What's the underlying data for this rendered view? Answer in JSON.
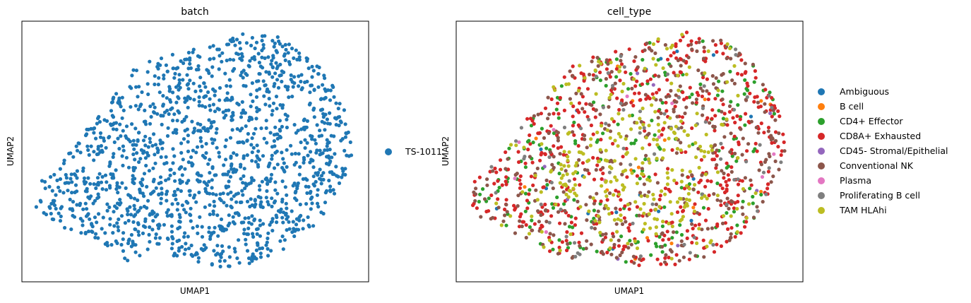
{
  "chart_data": [
    {
      "type": "scatter",
      "title": "batch",
      "xlabel": "UMAP1",
      "ylabel": "UMAP2",
      "xticks": false,
      "yticks": false,
      "grid": false,
      "legend_position": "right",
      "n_points": 1500,
      "series": [
        {
          "name": "TS-1011",
          "color": "#1f77b4"
        }
      ]
    },
    {
      "type": "scatter",
      "title": "cell_type",
      "xlabel": "UMAP1",
      "ylabel": "UMAP2",
      "xticks": false,
      "yticks": false,
      "grid": false,
      "legend_position": "right",
      "n_points": 1500,
      "series": [
        {
          "name": "Ambiguous",
          "color": "#1f77b4",
          "fraction": 0.015
        },
        {
          "name": "B cell",
          "color": "#ff7f0e",
          "fraction": 0.01
        },
        {
          "name": "CD4+ Effector",
          "color": "#2ca02c",
          "fraction": 0.15
        },
        {
          "name": "CD8A+ Exhausted",
          "color": "#d62728",
          "fraction": 0.39
        },
        {
          "name": "CD45- Stromal/Epithelial",
          "color": "#9467bd",
          "fraction": 0.01
        },
        {
          "name": "Conventional NK",
          "color": "#8c564b",
          "fraction": 0.27
        },
        {
          "name": "Plasma",
          "color": "#e377c2",
          "fraction": 0.01
        },
        {
          "name": "Proliferating B cell",
          "color": "#7f7f7f",
          "fraction": 0.045
        },
        {
          "name": "TAM HLAhi",
          "color": "#bcbd22",
          "fraction": 0.1
        }
      ]
    }
  ]
}
